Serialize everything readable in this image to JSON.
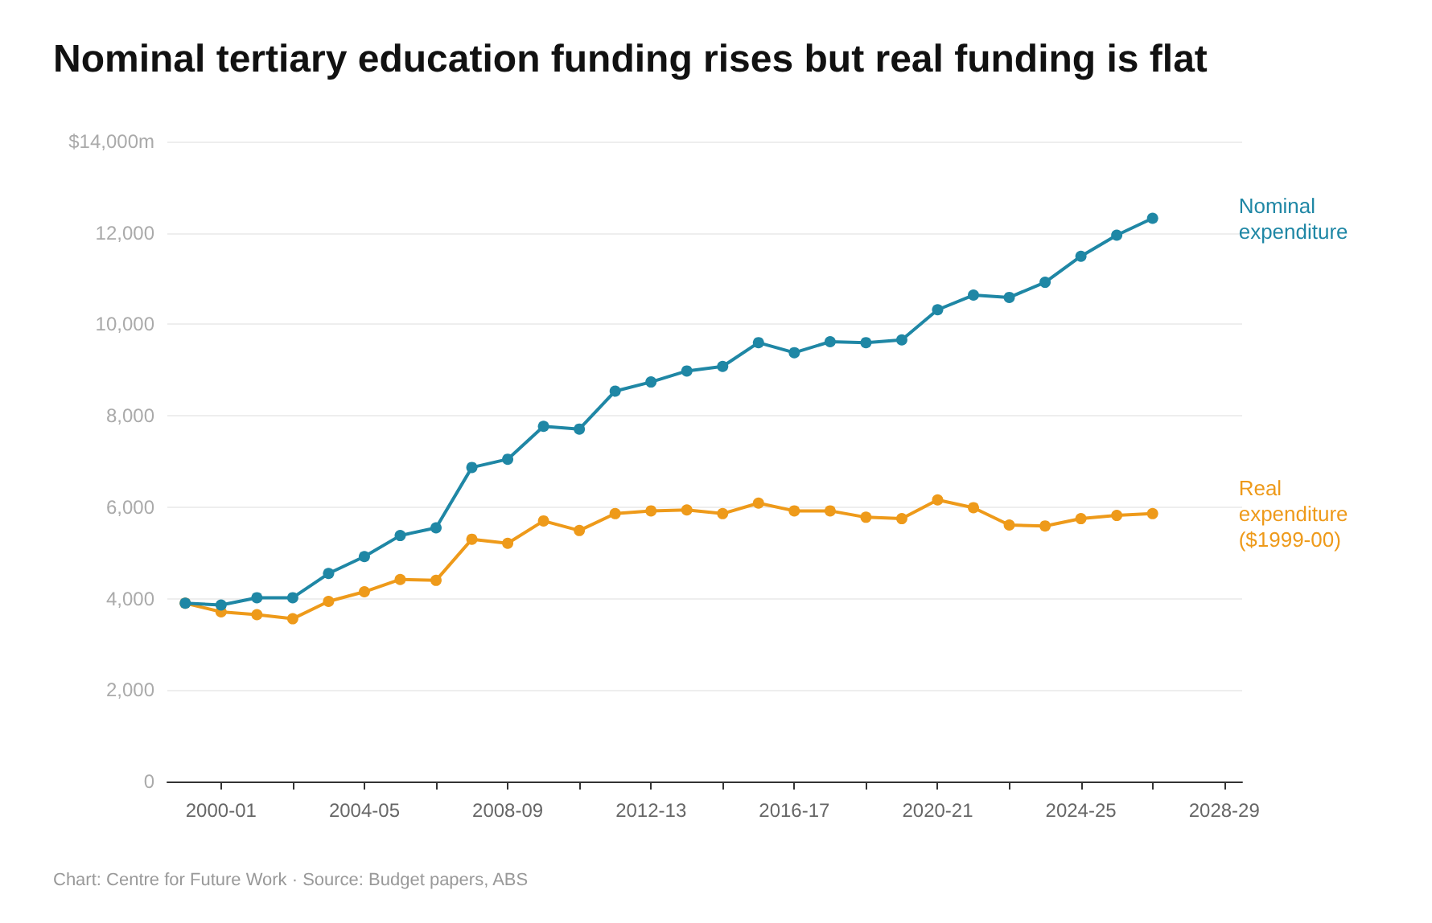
{
  "chart_data": {
    "type": "line",
    "title": "Nominal tertiary education funding rises but real funding is flat",
    "categories": [
      null,
      "2000-01",
      null,
      null,
      null,
      "2004-05",
      null,
      null,
      null,
      "2008-09",
      null,
      null,
      null,
      "2012-13",
      null,
      null,
      null,
      "2016-17",
      null,
      null,
      null,
      "2020-21",
      null,
      null,
      null,
      "2024-25",
      null,
      null,
      null,
      "2028-29"
    ],
    "series": [
      {
        "name": "Nominal expenditure",
        "color": "#1f87a5",
        "values": [
          3900,
          3860,
          4020,
          4020,
          4550,
          4920,
          5380,
          5550,
          6870,
          7050,
          7770,
          7710,
          8540,
          8740,
          8980,
          9080,
          9600,
          9380,
          9620,
          9600,
          9660,
          10320,
          10640,
          10590,
          10920,
          11490,
          11950,
          12320,
          null,
          null
        ]
      },
      {
        "name": "Real expenditure ($1999-00)",
        "color": "#ee9a1a",
        "values": [
          3900,
          3710,
          3650,
          3560,
          3940,
          4150,
          4420,
          4400,
          5300,
          5210,
          5700,
          5490,
          5860,
          5920,
          5940,
          5860,
          6090,
          5920,
          5920,
          5780,
          5750,
          6160,
          5990,
          5610,
          5590,
          5750,
          5820,
          5860,
          null,
          null
        ]
      }
    ],
    "ylim": [
      0,
      14000
    ],
    "yticks": [
      0,
      {
        "value": 2000,
        "label": "2,000"
      },
      {
        "value": 4000,
        "label": "4,000"
      },
      {
        "value": 6000,
        "label": "6,000"
      },
      {
        "value": 8000,
        "label": "8,000"
      },
      {
        "value": 10000,
        "label": "10,000"
      },
      {
        "value": 12000,
        "label": "12,000"
      },
      {
        "value": 14000,
        "label": "$14,000m"
      }
    ],
    "grid": "y",
    "legend": false,
    "marker": "circle",
    "line_style": "solid",
    "annotations": [
      "Chart: Centre for Future Work · Source: Budget papers, ABS"
    ]
  }
}
